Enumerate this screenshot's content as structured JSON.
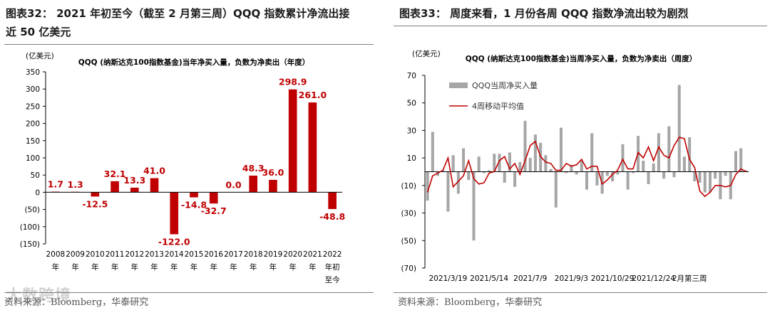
{
  "left_panel": {
    "figure_title_line1": "图表32： 2021 年初至今（截至 2 月第三周）QQQ 指数累计净流出接",
    "figure_title_line2": "近 50 亿美元",
    "source": "资料来源：Bloomberg，华泰研究",
    "watermark": "大数跨境"
  },
  "right_panel": {
    "figure_title": "图表33： 周度来看，1 月份各周 QQQ 指数净流出较为剧烈",
    "source": "资料来源：Bloomberg，华泰研究"
  },
  "chart_data": [
    {
      "type": "bar",
      "title": "QQQ (纳斯达克100指数基金)当年净买入量，负数为净卖出（年度）",
      "ylabel": "(亿美元)",
      "ylim": [
        -150,
        350
      ],
      "yticks": [
        -150,
        -100,
        -50,
        0,
        50,
        100,
        150,
        200,
        250,
        300,
        350
      ],
      "ytick_labels": [
        "(150)",
        "(100)",
        "(50)",
        "0",
        "50",
        "100",
        "150",
        "200",
        "250",
        "300",
        "350"
      ],
      "categories": [
        "2008\n年",
        "2009\n年",
        "2010\n年",
        "2011\n年",
        "2012\n年",
        "2013\n年",
        "2014\n年",
        "2015\n年",
        "2016\n年",
        "2017\n年",
        "2018\n年",
        "2019\n年",
        "2020\n年",
        "2021\n年",
        "2022\n年初\n至今"
      ],
      "values": [
        1.7,
        1.3,
        -12.5,
        32.1,
        13.3,
        41.0,
        -122.0,
        -14.8,
        -32.7,
        0.0,
        48.3,
        36.0,
        298.9,
        261.0,
        -48.8
      ],
      "value_labels": [
        "1.7",
        "1.3",
        "-12.5",
        "32.1",
        "13.3",
        "41.0",
        "-122.0",
        "-14.8",
        "-32.7",
        "0.0",
        "48.3",
        "36.0",
        "298.9",
        "261.0",
        "-48.8"
      ],
      "bar_color": "#c00000",
      "label_color": "#c00000"
    },
    {
      "type": "bar+line",
      "title": "QQQ (纳斯达克100指数基金)当周净买入量，负数为净卖出（周度）",
      "ylabel": "(亿美元)",
      "ylim": [
        -70,
        70
      ],
      "yticks": [
        -70,
        -50,
        -30,
        -10,
        10,
        30,
        50,
        70
      ],
      "ytick_labels": [
        "(70)",
        "(50)",
        "(30)",
        "(10)",
        "10",
        "30",
        "50",
        "70"
      ],
      "x_tick_labels": [
        "2021/3/19",
        "2021/5/14",
        "2021/7/9",
        "2021/9/3",
        "2021/10/29",
        "2021/12/24",
        "2月第三周"
      ],
      "x_tick_indices": [
        4,
        12,
        20,
        28,
        36,
        44,
        51
      ],
      "series": [
        {
          "name": "QQQ当周净买入量",
          "kind": "bar",
          "color": "#a6a6a6",
          "values": [
            -21,
            29,
            -3,
            1,
            -29,
            12,
            -16,
            17,
            -6,
            -50,
            11,
            -1,
            1,
            13,
            13,
            -8,
            14,
            -11,
            7,
            37,
            10,
            27,
            21,
            12,
            2,
            -26,
            32,
            -1,
            5,
            -2,
            8,
            -13,
            28,
            -10,
            -16,
            -3,
            -7,
            -2,
            20,
            -13,
            -1,
            26,
            8,
            -9,
            6,
            28,
            -5,
            33,
            -4,
            63,
            11,
            25,
            -7,
            -8,
            -15,
            -15,
            -5,
            -20,
            -3,
            -20,
            15,
            17,
            1
          ]
        },
        {
          "name": "4周移动平均值",
          "kind": "line",
          "color": "#c00000",
          "values": [
            -15,
            -3,
            -1,
            1,
            10,
            -11,
            -7,
            -3,
            8,
            -5,
            -9,
            -8,
            -1,
            0,
            8,
            11,
            2,
            6,
            -2,
            8,
            19,
            22,
            11,
            7,
            6,
            1,
            1,
            6,
            4,
            5,
            9,
            2,
            4,
            4,
            -9,
            -6,
            -2,
            1,
            9,
            2,
            2,
            14,
            10,
            18,
            8,
            18,
            12,
            10,
            19,
            25,
            24,
            9,
            3,
            -14,
            -18,
            -15,
            -10,
            -10,
            -11,
            -10,
            -2,
            2,
            0
          ]
        }
      ]
    }
  ]
}
